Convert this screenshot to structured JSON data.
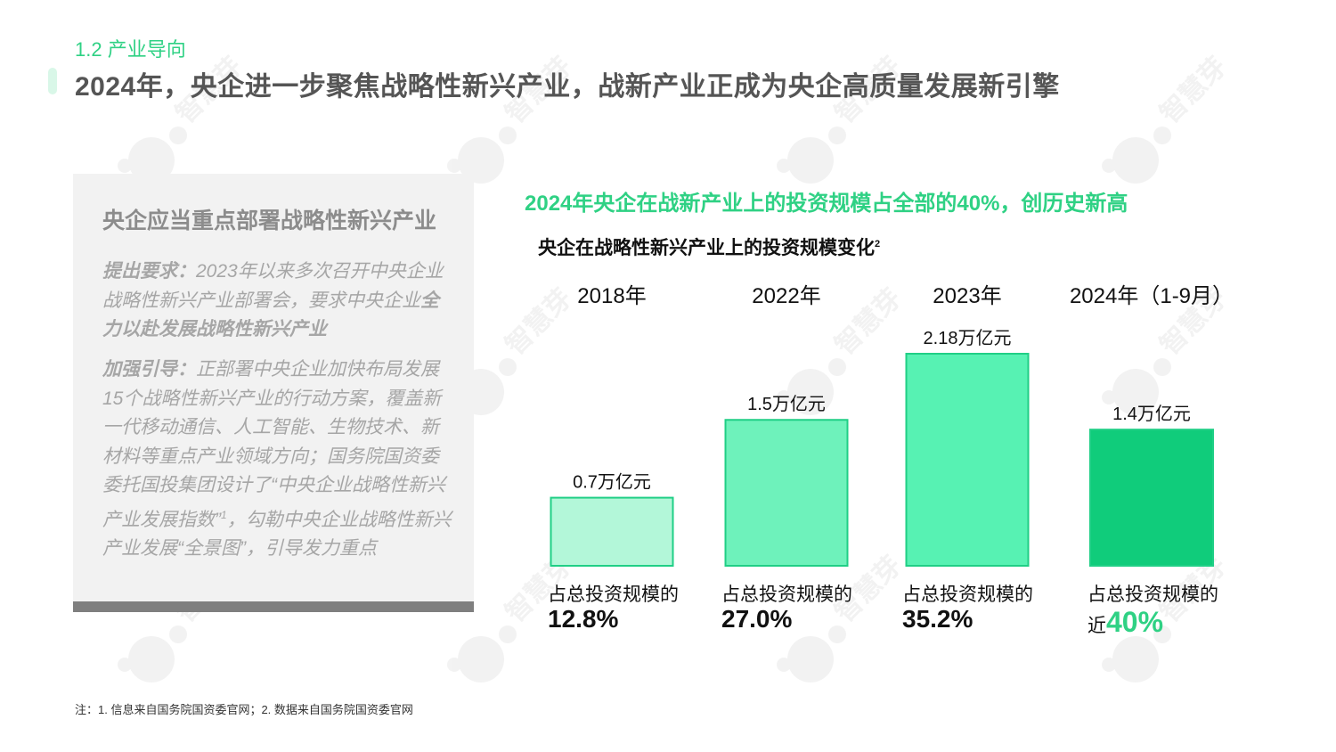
{
  "section": "1.2 产业导向",
  "headline": "2024年，央企进一步聚焦战略性新兴产业，战新产业正成为央企高质量发展新引擎",
  "watermark_text": "智慧芽",
  "panel": {
    "title": "央企应当重点部署战略性新兴产业",
    "p1_lead": "提出要求：",
    "p1_text": "2023年以来多次召开中央企业战略性新兴产业部署会，要求中央企业",
    "p1_strong": "全力以赴发展战略性新兴产业",
    "p2_lead": "加强引导：",
    "p2_text_a": "正部署中央企业加快布局发展15个战略性新兴产业的行动方案，覆盖新一代移动通信、人工智能、生物技术、新材料等重点产业领域方向；国务院国资委委托国投集团设计了“中央企业战略性新兴产业发展指数”",
    "p2_sup": "1",
    "p2_text_b": "，勾勒中央企业战略性新兴产业发展“全景图”，引导发力重点"
  },
  "chart_headline": "2024年央企在战新产业上的投资规模占全部的40%，创历史新高",
  "chart_title": "央企在战略性新兴产业上的投资规模变化",
  "chart_title_sup": "2",
  "share_label": "占总投资规模的",
  "chart_data": {
    "type": "bar",
    "categories": [
      "2018年",
      "2022年",
      "2023年",
      "2024年（1-9月）"
    ],
    "values": [
      0.7,
      1.5,
      2.18,
      1.4
    ],
    "value_labels": [
      "0.7万亿元",
      "1.5万亿元",
      "2.18万亿元",
      "1.4万亿元"
    ],
    "unit": "万亿元",
    "shares": [
      "12.8%",
      "27.0%",
      "35.2%",
      "40%"
    ],
    "share_prefixes": [
      "",
      "",
      "",
      "近"
    ],
    "colors": [
      "#b3f7d9",
      "#6ef2bb",
      "#57f2b3",
      "#10cc7b"
    ],
    "border_color": "#20cf86",
    "ylim": [
      0,
      2.18
    ]
  },
  "footnote": "注：1. 信息来自国务院国资委官网；2. 数据来自国务院国资委官网"
}
